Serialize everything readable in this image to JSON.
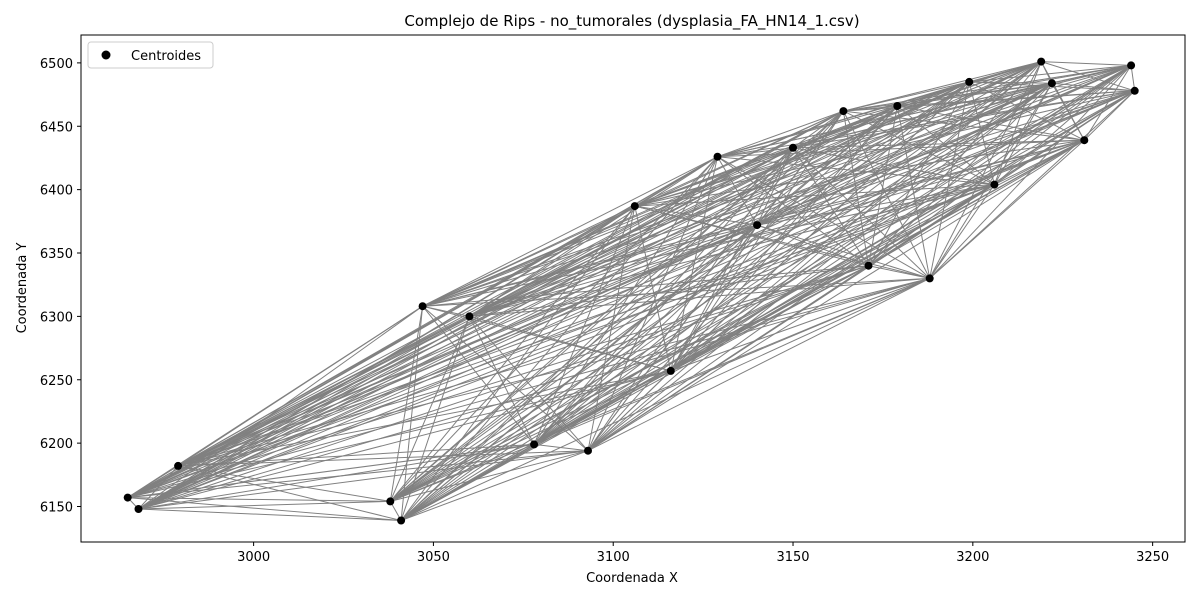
{
  "chart_data": {
    "type": "scatter",
    "title": "Complejo de Rips - no_tumorales (dysplasia_FA_HN14_1.csv)",
    "xlabel": "Coordenada X",
    "ylabel": "Coordenada Y",
    "xlim": [
      2952,
      3259
    ],
    "ylim": [
      6122,
      6522
    ],
    "xticks": [
      3000,
      3050,
      3100,
      3150,
      3200,
      3250
    ],
    "yticks": [
      6150,
      6200,
      6250,
      6300,
      6350,
      6400,
      6450,
      6500
    ],
    "grid": false,
    "legend_position": "upper-left",
    "point_color": "#000000",
    "edge_color": "#808080",
    "series": [
      {
        "name": "Centroides",
        "points": [
          [
            2965,
            6157
          ],
          [
            2968,
            6148
          ],
          [
            2979,
            6182
          ],
          [
            3038,
            6154
          ],
          [
            3041,
            6139
          ],
          [
            3047,
            6308
          ],
          [
            3093,
            6194
          ],
          [
            3106,
            6387
          ],
          [
            3129,
            6426
          ],
          [
            3164,
            6462
          ],
          [
            3171,
            6340
          ],
          [
            3188,
            6330
          ],
          [
            3199,
            6485
          ],
          [
            3219,
            6501
          ],
          [
            3231,
            6439
          ],
          [
            3244,
            6498
          ],
          [
            3245,
            6478
          ],
          [
            3179,
            6466
          ],
          [
            3222,
            6484
          ],
          [
            3206,
            6404
          ],
          [
            3116,
            6257
          ],
          [
            3078,
            6199
          ],
          [
            3150,
            6433
          ],
          [
            3140,
            6372
          ],
          [
            3060,
            6300
          ]
        ]
      }
    ]
  }
}
